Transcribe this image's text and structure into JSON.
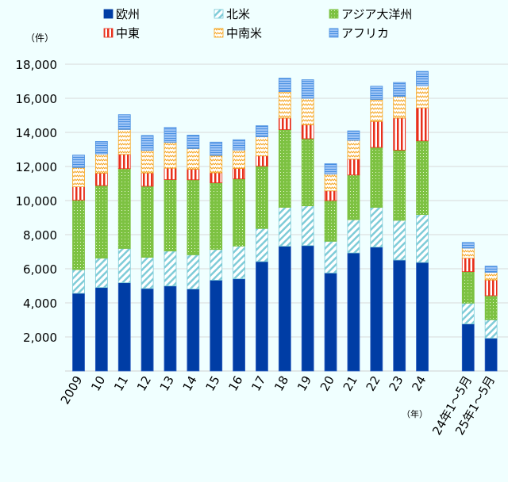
{
  "chart_data": {
    "type": "bar",
    "stacked": true,
    "unit_label": "（件）",
    "xlabel_unit": "（年）",
    "categories": [
      "2009",
      "10",
      "11",
      "12",
      "13",
      "14",
      "15",
      "16",
      "17",
      "18",
      "19",
      "20",
      "21",
      "22",
      "23",
      "24",
      "24年1～5月",
      "25年1～5月"
    ],
    "ylim": [
      0,
      18000
    ],
    "yticks": [
      "2,000",
      "4,000",
      "6,000",
      "8,000",
      "10,000",
      "12,000",
      "14,000",
      "16,000",
      "18,000"
    ],
    "ytick_values": [
      2000,
      4000,
      6000,
      8000,
      10000,
      12000,
      14000,
      16000,
      18000
    ],
    "grid": true,
    "legend_placement": "top",
    "series": [
      {
        "name": "欧州",
        "color": "#003DA5",
        "pattern": "solid",
        "values": [
          4560,
          4900,
          5180,
          4840,
          4990,
          4810,
          5330,
          5410,
          6420,
          7320,
          7360,
          5750,
          6930,
          7270,
          6510,
          6370,
          2760,
          1920
        ]
      },
      {
        "name": "北米",
        "color": "#7FCCD8",
        "pattern": "diagonal",
        "values": [
          1390,
          1720,
          2010,
          1830,
          2050,
          2010,
          1800,
          1920,
          1940,
          2280,
          2330,
          1860,
          1950,
          2330,
          2330,
          2810,
          1220,
          1090
        ]
      },
      {
        "name": "アジア大洋州",
        "color": "#7DC242",
        "pattern": "dots",
        "values": [
          4080,
          4260,
          4680,
          4170,
          4190,
          4400,
          3910,
          3940,
          3660,
          4560,
          3940,
          2390,
          2620,
          3520,
          4120,
          4320,
          1850,
          1410
        ]
      },
      {
        "name": "中東",
        "color": "#E8301C",
        "pattern": "vertical",
        "values": [
          780,
          730,
          840,
          780,
          670,
          620,
          590,
          620,
          600,
          680,
          820,
          570,
          930,
          1520,
          1880,
          1940,
          790,
          920
        ]
      },
      {
        "name": "中南米",
        "color": "#F5A623",
        "pattern": "zigzag",
        "values": [
          1130,
          1130,
          1460,
          1330,
          1520,
          1210,
          1020,
          1080,
          1120,
          1550,
          1550,
          990,
          1100,
          1290,
          1270,
          1300,
          590,
          450
        ]
      },
      {
        "name": "アフリカ",
        "color": "#4A90E2",
        "pattern": "horizontal",
        "values": [
          730,
          730,
          870,
          870,
          870,
          790,
          780,
          600,
          650,
          790,
          1090,
          600,
          560,
          780,
          820,
          840,
          330,
          360
        ]
      }
    ]
  }
}
